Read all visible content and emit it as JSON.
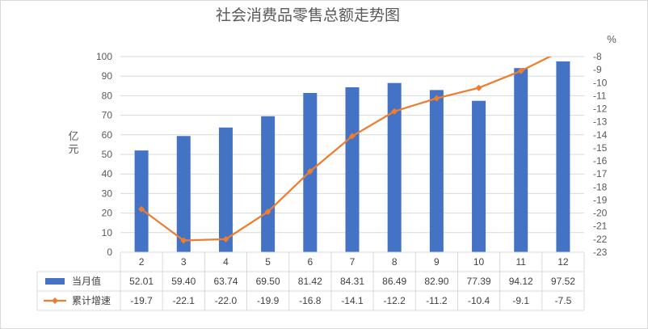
{
  "chart_data": {
    "type": "bar",
    "title": "社会消费品零售总额走势图",
    "ylabel": "亿元",
    "y2label": "%",
    "categories": [
      "2",
      "3",
      "4",
      "5",
      "6",
      "7",
      "8",
      "9",
      "10",
      "11",
      "12"
    ],
    "ylim": [
      0,
      100
    ],
    "yticks": [
      0,
      10,
      20,
      30,
      40,
      50,
      60,
      70,
      80,
      90,
      100
    ],
    "y2lim": [
      -23,
      -8
    ],
    "y2ticks": [
      -8,
      -9,
      -10,
      -11,
      -12,
      -13,
      -14,
      -15,
      -16,
      -17,
      -18,
      -19,
      -20,
      -21,
      -22,
      -23
    ],
    "grid": true,
    "legend": "data-table",
    "series": [
      {
        "name": "当月值",
        "type": "bar",
        "axis": "left",
        "color": "#4472C4",
        "values": [
          52.01,
          59.4,
          63.74,
          69.5,
          81.42,
          84.31,
          86.49,
          82.9,
          77.39,
          94.12,
          97.52
        ],
        "labels": [
          "52.01",
          "59.40",
          "63.74",
          "69.50",
          "81.42",
          "84.31",
          "86.49",
          "82.90",
          "77.39",
          "94.12",
          "97.52"
        ]
      },
      {
        "name": "累计增速",
        "type": "line",
        "axis": "right",
        "color": "#ED7D31",
        "values": [
          -19.7,
          -22.1,
          -22.0,
          -19.9,
          -16.8,
          -14.1,
          -12.2,
          -11.2,
          -10.4,
          -9.1,
          -7.5
        ],
        "labels": [
          "-19.7",
          "-22.1",
          "-22.0",
          "-19.9",
          "-16.8",
          "-14.1",
          "-12.2",
          "-11.2",
          "-10.4",
          "-9.1",
          "-7.5"
        ]
      }
    ]
  }
}
